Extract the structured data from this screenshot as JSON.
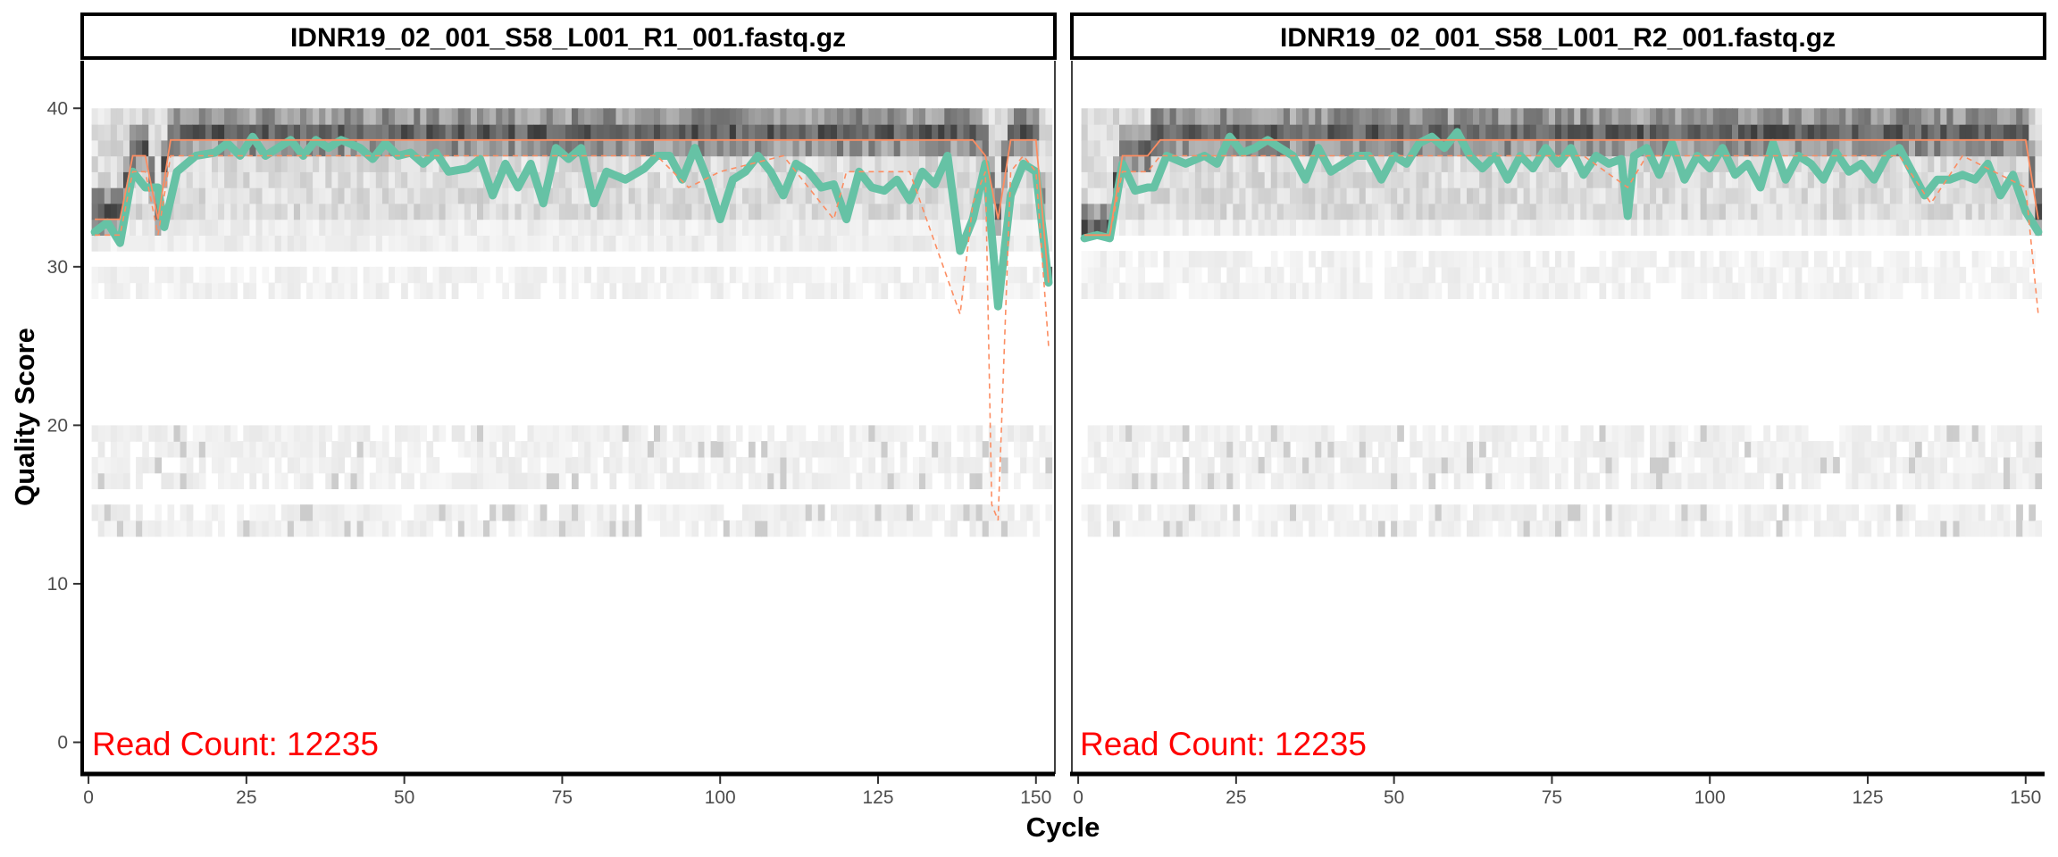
{
  "chart_data": {
    "type": "heatmap",
    "title": "",
    "xlabel": "Cycle",
    "ylabel": "Quality Score",
    "xlim": [
      -1,
      153
    ],
    "ylim": [
      -2,
      43
    ],
    "x_ticks": [
      0,
      25,
      50,
      75,
      100,
      125,
      150
    ],
    "y_ticks": [
      0,
      10,
      20,
      30,
      40
    ],
    "grid": false,
    "colors": {
      "mean_line": "#66c2a5",
      "quantile_lines": "#fc8d62",
      "heat_low": "#f4f4f4",
      "heat_high": "#000000",
      "read_count": "#ff0000"
    },
    "panels": [
      {
        "strip_label": "IDNR19_02_001_S58_L001_R1_001.fastq.gz",
        "read_count_label": "Read Count:  12235",
        "series": [
          {
            "kind": "mean",
            "x": [
              1,
              3,
              5,
              7,
              9,
              11,
              12,
              14,
              17,
              20,
              22,
              24,
              26,
              28,
              30,
              32,
              34,
              36,
              38,
              40,
              43,
              45,
              47,
              49,
              51,
              53,
              55,
              57,
              60,
              62,
              64,
              66,
              68,
              70,
              72,
              74,
              76,
              78,
              80,
              82,
              85,
              88,
              90,
              92,
              94,
              96,
              98,
              100,
              102,
              104,
              106,
              108,
              110,
              112,
              114,
              116,
              118,
              120,
              122,
              124,
              126,
              128,
              130,
              132,
              134,
              136,
              138,
              140,
              142,
              144,
              146,
              148,
              150,
              152
            ],
            "values": [
              32.2,
              32.8,
              31.5,
              36,
              35,
              35,
              32.5,
              36,
              37,
              37.2,
              37.8,
              37,
              38.2,
              37,
              37.5,
              38,
              37,
              38,
              37.5,
              38,
              37.5,
              36.8,
              37.8,
              37,
              37.2,
              36.5,
              37.2,
              36,
              36.2,
              36.8,
              34.5,
              36.5,
              35,
              36.5,
              34,
              37.5,
              36.8,
              37.5,
              34,
              36,
              35.5,
              36.2,
              37,
              37,
              35.5,
              37.5,
              35.5,
              33,
              35.5,
              36,
              37,
              36,
              34.5,
              36.5,
              36,
              35,
              35.2,
              33,
              36,
              35,
              34.8,
              35.5,
              34.2,
              36,
              35.2,
              37,
              31,
              33,
              36.5,
              27.5,
              34.5,
              36.5,
              36,
              29
            ]
          },
          {
            "kind": "median",
            "x": [
              1,
              5,
              7,
              9,
              11,
              13,
              15,
              20,
              25,
              30,
              35,
              40,
              45,
              50,
              55,
              60,
              65,
              70,
              75,
              80,
              85,
              90,
              95,
              100,
              105,
              110,
              115,
              120,
              125,
              130,
              135,
              140,
              142,
              144,
              146,
              148,
              150,
              152
            ],
            "values": [
              33,
              33,
              37,
              37,
              33,
              38,
              38,
              38,
              38,
              38,
              38,
              38,
              38,
              38,
              38,
              38,
              38,
              38,
              38,
              38,
              38,
              38,
              38,
              38,
              38,
              38,
              38,
              38,
              38,
              38,
              38,
              38,
              37,
              33,
              38,
              38,
              38,
              29
            ]
          },
          {
            "kind": "quartile",
            "x": [
              1,
              5,
              7,
              9,
              11,
              13,
              15,
              20,
              25,
              30,
              40,
              50,
              60,
              70,
              80,
              90,
              95,
              100,
              110,
              118,
              120,
              125,
              130,
              138,
              140,
              142,
              143,
              144,
              146,
              148,
              150,
              152
            ],
            "values": [
              32,
              32,
              36,
              36,
              32,
              37,
              37,
              37,
              37,
              37,
              37,
              37,
              37,
              37,
              37,
              37,
              35,
              36,
              37,
              33,
              36,
              36,
              36,
              27,
              34,
              36,
              15,
              14,
              36,
              37,
              36,
              25
            ]
          }
        ],
        "heat_rows_q": [
          28.5,
          29.5,
          31.5,
          32.5,
          33.5,
          34.5,
          35.5,
          36.5,
          37.5,
          38.5,
          39.5,
          13.5,
          14.5,
          16.5,
          17.5,
          18.5,
          19.5
        ]
      },
      {
        "strip_label": "IDNR19_02_001_S58_L001_R2_001.fastq.gz",
        "read_count_label": "Read Count:  12235",
        "series": [
          {
            "kind": "mean",
            "x": [
              1,
              3,
              5,
              7,
              9,
              11,
              12,
              14,
              17,
              20,
              22,
              24,
              26,
              28,
              30,
              32,
              34,
              36,
              38,
              40,
              42,
              44,
              46,
              48,
              50,
              52,
              54,
              56,
              58,
              60,
              62,
              64,
              66,
              68,
              70,
              72,
              74,
              76,
              78,
              80,
              82,
              84,
              86,
              87,
              88,
              90,
              92,
              94,
              96,
              98,
              100,
              102,
              104,
              106,
              108,
              110,
              112,
              114,
              116,
              118,
              120,
              122,
              124,
              126,
              128,
              130,
              132,
              134,
              136,
              138,
              140,
              142,
              144,
              146,
              148,
              150,
              152
            ],
            "values": [
              31.8,
              32,
              31.8,
              36.5,
              34.8,
              35,
              35,
              37,
              36.5,
              37,
              36.5,
              38.2,
              37.2,
              37.5,
              38,
              37.5,
              37,
              35.5,
              37.5,
              36,
              36.5,
              37,
              37,
              35.5,
              37,
              36.5,
              37.8,
              38.2,
              37.5,
              38.5,
              37,
              36.2,
              37,
              35.5,
              37,
              36.2,
              37.5,
              36.5,
              37.5,
              35.8,
              37,
              36.5,
              36.8,
              33.2,
              37,
              37.5,
              35.8,
              37.8,
              35.5,
              37,
              36.2,
              37.5,
              35.8,
              36.5,
              35,
              37.8,
              35.5,
              37,
              36.5,
              35.5,
              37.2,
              36,
              36.5,
              35.5,
              37,
              37.5,
              36,
              34.5,
              35.5,
              35.5,
              35.8,
              35.5,
              36.5,
              34.5,
              35.8,
              33.5,
              32.2
            ]
          },
          {
            "kind": "median",
            "x": [
              1,
              5,
              7,
              9,
              11,
              13,
              15,
              20,
              25,
              30,
              40,
              50,
              60,
              70,
              80,
              90,
              100,
              110,
              120,
              130,
              140,
              150,
              152
            ],
            "values": [
              32,
              32,
              37,
              37,
              37,
              38,
              38,
              38,
              38,
              38,
              38,
              38,
              38,
              38,
              38,
              38,
              38,
              38,
              38,
              38,
              38,
              38,
              33
            ]
          },
          {
            "kind": "quartile",
            "x": [
              1,
              5,
              7,
              9,
              11,
              13,
              15,
              20,
              25,
              30,
              40,
              50,
              60,
              70,
              80,
              87,
              90,
              100,
              110,
              120,
              130,
              135,
              140,
              150,
              152
            ],
            "values": [
              32,
              32,
              36,
              36,
              36,
              37,
              37,
              37,
              37,
              37,
              37,
              37,
              37,
              37,
              37,
              35,
              37,
              37,
              37,
              37,
              37,
              34,
              37,
              35,
              27
            ]
          }
        ],
        "heat_rows_q": [
          28.5,
          29.5,
          30.5,
          32.5,
          33.5,
          34.5,
          35.5,
          36.5,
          37.5,
          38.5,
          39.5,
          13.5,
          14.5,
          16.5,
          17.5,
          18.5,
          19.5
        ]
      }
    ]
  }
}
